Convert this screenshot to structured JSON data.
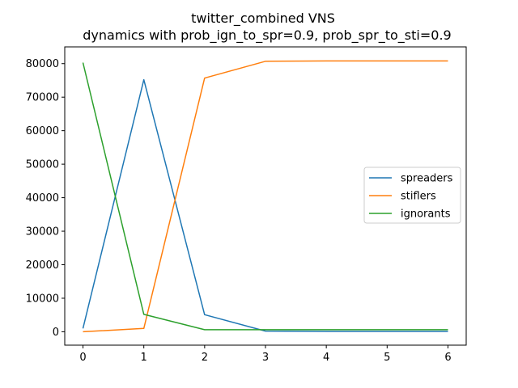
{
  "chart_data": {
    "type": "line",
    "title": "twitter_combined VNS",
    "subtitle": "dynamics with prob_ign_to_spr=0.9, prob_spr_to_sti=0.9",
    "xlabel": "",
    "ylabel": "",
    "x": [
      0,
      1,
      2,
      3,
      4,
      5,
      6
    ],
    "xlim": [
      -0.3,
      6.3
    ],
    "ylim": [
      -4000,
      85000
    ],
    "xticks": [
      0,
      1,
      2,
      3,
      4,
      5,
      6
    ],
    "yticks": [
      0,
      10000,
      20000,
      30000,
      40000,
      50000,
      60000,
      70000,
      80000
    ],
    "grid": false,
    "legend_position": "center-right",
    "series": [
      {
        "name": "spreaders",
        "color": "#1f77b4",
        "values": [
          1000,
          75200,
          5100,
          200,
          100,
          100,
          100
        ]
      },
      {
        "name": "stiflers",
        "color": "#ff7f0e",
        "values": [
          0,
          1000,
          75700,
          80700,
          80800,
          80800,
          80800
        ]
      },
      {
        "name": "ignorants",
        "color": "#2ca02c",
        "values": [
          80300,
          5200,
          600,
          600,
          600,
          600,
          600
        ]
      }
    ]
  }
}
